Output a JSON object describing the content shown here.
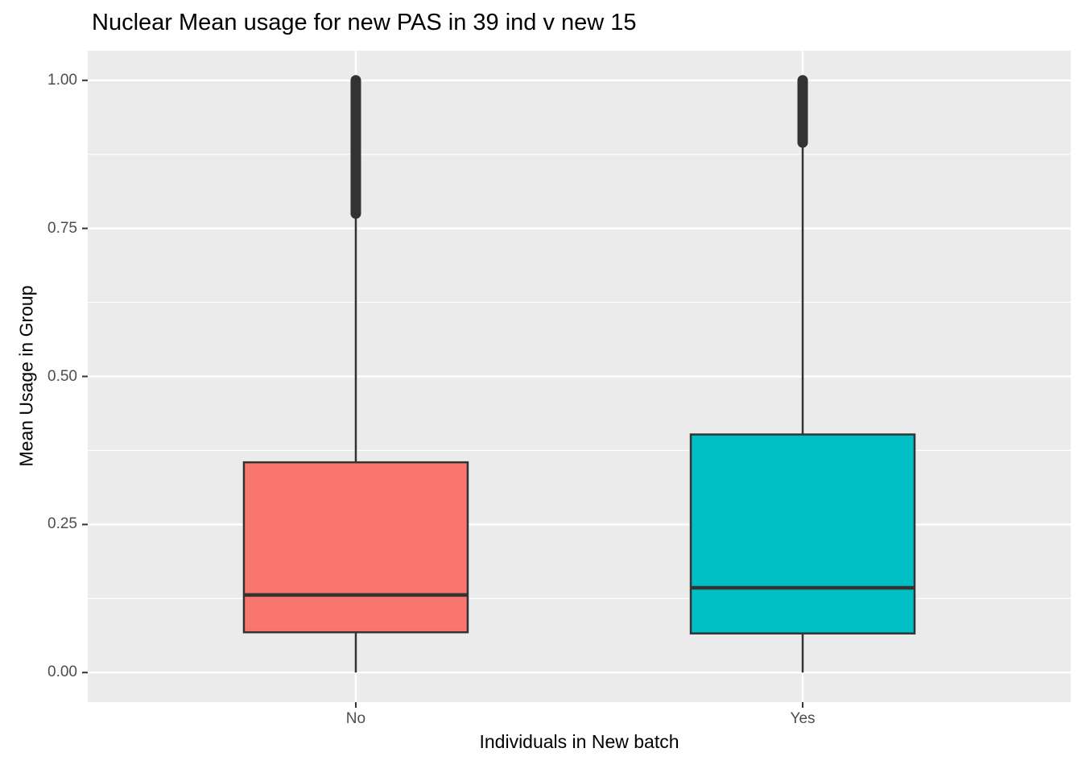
{
  "chart_data": {
    "type": "boxplot",
    "title": "Nuclear Mean usage for new PAS in 39 ind v new 15",
    "xlabel": "Individuals in New batch",
    "ylabel": "Mean Usage in Group",
    "categories": [
      "No",
      "Yes"
    ],
    "y_ticks": [
      0,
      0.25,
      0.5,
      0.75,
      1
    ],
    "y_tick_labels": [
      "0.00",
      "0.25",
      "0.50",
      "0.75",
      "1.00"
    ],
    "y_minor_ticks": [
      0.125,
      0.375,
      0.625,
      0.875
    ],
    "ylim": [
      -0.05,
      1.05
    ],
    "grid": "white major and minor horizontal lines plus major vertical line per category on grey panel",
    "legend": "none",
    "series": [
      {
        "category": "No",
        "fill": "#F8766D",
        "q1": 0.068,
        "median": 0.131,
        "q3": 0.355,
        "whisker_low": 0.0,
        "whisker_high": 0.775,
        "outliers_range": [
          0.775,
          1.0
        ]
      },
      {
        "category": "Yes",
        "fill": "#00BFC4",
        "q1": 0.066,
        "median": 0.143,
        "q3": 0.402,
        "whisker_low": 0.0,
        "whisker_high": 0.895,
        "outliers_range": [
          0.895,
          1.0
        ]
      }
    ],
    "colors": {
      "panel_background": "#EBEBEB",
      "grid": "#FFFFFF",
      "outline": "#333333",
      "tick_label_text": "#4D4D4D",
      "title_text": "#000000",
      "no_fill": "#F8766D",
      "yes_fill": "#00BFC4"
    }
  }
}
